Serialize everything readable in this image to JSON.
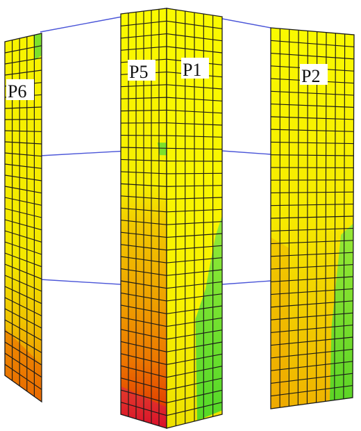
{
  "labels": {
    "p6": "P6",
    "p5": "P5",
    "p1": "P1",
    "p2": "P2"
  },
  "colors": {
    "background": "#ffffff",
    "mesh_line": "#1a1a1a",
    "beam_line": "#4a55d8",
    "contour_yellow": "#fafa00",
    "contour_yellow_orange": "#f2cf00",
    "contour_orange": "#ee9a00",
    "contour_red_orange": "#ea6400",
    "contour_red": "#e02400",
    "contour_magenta": "#d8007a",
    "contour_green": "#5ee02a"
  }
}
